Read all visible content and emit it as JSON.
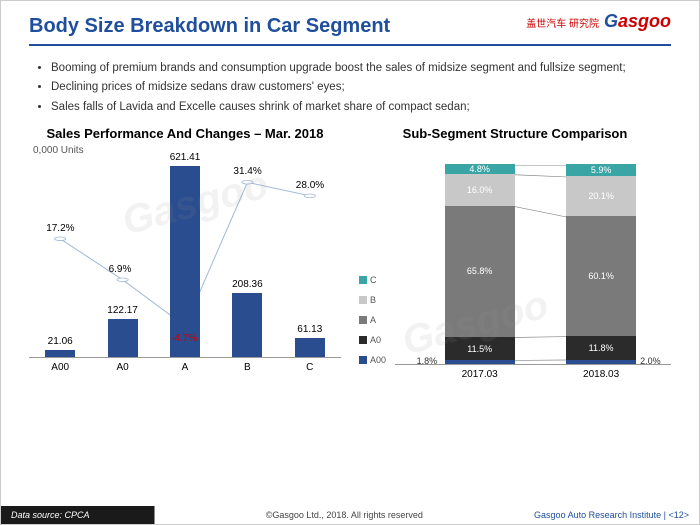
{
  "title": "Body Size Breakdown in Car Segment",
  "logo": {
    "text": "Gasgoo",
    "cn": "盖世汽车 研究院"
  },
  "bullets": [
    "Booming of premium brands and consumption upgrade boost the sales of midsize segment and fullsize segment;",
    "Declining prices of midsize sedans draw customers' eyes;",
    "Sales falls of Lavida and Excelle causes shrink of market share of compact sedan;"
  ],
  "chart1": {
    "title": "Sales Performance And Changes – Mar. 2018",
    "ylabel": "0,000 Units",
    "bar_color": "#2a4d8f",
    "line_color": "#9fb8d9",
    "max_val": 650,
    "categories": [
      "A00",
      "A0",
      "A",
      "B",
      "C"
    ],
    "values": [
      21.06,
      122.17,
      621.41,
      208.36,
      61.13
    ],
    "changes": [
      17.2,
      6.9,
      -4.7,
      31.4,
      28.0
    ],
    "changes_str": [
      "17.2%",
      "6.9%",
      "-4.7%",
      "31.4%",
      "28.0%"
    ],
    "neg_color": "#c00"
  },
  "chart2": {
    "title": "Sub-Segment Structure Comparison",
    "periods": [
      "2017.03",
      "2018.03"
    ],
    "segments": [
      "C",
      "B",
      "A",
      "A0",
      "A00"
    ],
    "colors": {
      "C": "#3aa5a5",
      "B": "#c8c8c8",
      "A": "#7a7a7a",
      "A0": "#2b2b2b",
      "A00": "#2a4d8f"
    },
    "data": {
      "2017.03": {
        "C": 4.8,
        "B": 16.0,
        "A": 65.8,
        "A0": 11.5,
        "A00": 1.8
      },
      "2018.03": {
        "C": 5.9,
        "B": 20.1,
        "A": 60.1,
        "A0": 11.8,
        "A00": 2.0
      }
    },
    "ext_labels": {
      "2017.03": "1.8%",
      "2018.03": "2.0%"
    }
  },
  "footer": {
    "source": "Data source: CPCA",
    "copy": "©Gasgoo Ltd., 2018.  All rights reserved",
    "institute": "Gasgoo Auto Research Institute",
    "page": "<12>"
  }
}
